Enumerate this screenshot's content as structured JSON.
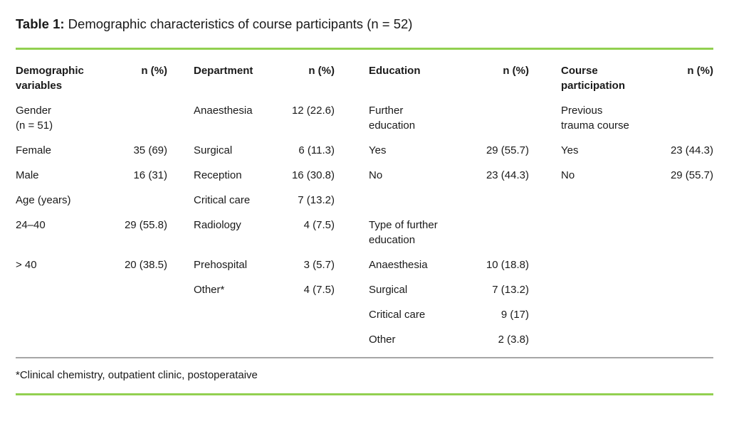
{
  "title": {
    "label": "Table 1:",
    "text": " Demographic characteristics of course participants (n = 52)"
  },
  "table": {
    "columns": [
      {
        "header": "Demographic\nvariables",
        "align": "left"
      },
      {
        "header": "n (%)",
        "align": "right"
      },
      {
        "header": "Department",
        "align": "left"
      },
      {
        "header": "n (%)",
        "align": "right"
      },
      {
        "header": "Education",
        "align": "left"
      },
      {
        "header": "n (%)",
        "align": "right"
      },
      {
        "header": "Course\nparticipation",
        "align": "left"
      },
      {
        "header": "n (%)",
        "align": "right"
      }
    ],
    "rows": [
      {
        "cells": [
          {
            "text": "Gender\n(n = 51)",
            "bold": true
          },
          {
            "text": ""
          },
          {
            "text": "Anaesthesia"
          },
          {
            "text": "12 (22.6)"
          },
          {
            "text": "Further\neducation",
            "bold": true
          },
          {
            "text": ""
          },
          {
            "text": "Previous\ntrauma course",
            "bold": true
          },
          {
            "text": ""
          }
        ]
      },
      {
        "cells": [
          {
            "text": "Female"
          },
          {
            "text": "35 (69)"
          },
          {
            "text": "Surgical"
          },
          {
            "text": "6 (11.3)"
          },
          {
            "text": "Yes"
          },
          {
            "text": "29 (55.7)"
          },
          {
            "text": "Yes"
          },
          {
            "text": "23 (44.3)"
          }
        ]
      },
      {
        "cells": [
          {
            "text": "Male"
          },
          {
            "text": "16 (31)"
          },
          {
            "text": "Reception"
          },
          {
            "text": "16 (30.8)"
          },
          {
            "text": "No"
          },
          {
            "text": "23 (44.3)"
          },
          {
            "text": "No"
          },
          {
            "text": "29 (55.7)"
          }
        ]
      },
      {
        "cells": [
          {
            "text": "Age (years)",
            "bold": true
          },
          {
            "text": ""
          },
          {
            "text": "Critical care"
          },
          {
            "text": "7 (13.2)"
          },
          {
            "text": ""
          },
          {
            "text": ""
          },
          {
            "text": ""
          },
          {
            "text": ""
          }
        ]
      },
      {
        "cells": [
          {
            "text": "24–40"
          },
          {
            "text": "29 (55.8)"
          },
          {
            "text": "Radiology"
          },
          {
            "text": "4 (7.5)"
          },
          {
            "text": "Type of further\neducation",
            "bold": true
          },
          {
            "text": ""
          },
          {
            "text": ""
          },
          {
            "text": ""
          }
        ]
      },
      {
        "cells": [
          {
            "text": "> 40"
          },
          {
            "text": "20 (38.5)"
          },
          {
            "text": "Prehospital"
          },
          {
            "text": "3 (5.7)"
          },
          {
            "text": "Anaesthesia"
          },
          {
            "text": "10 (18.8)"
          },
          {
            "text": ""
          },
          {
            "text": ""
          }
        ]
      },
      {
        "cells": [
          {
            "text": ""
          },
          {
            "text": ""
          },
          {
            "text": "Other*"
          },
          {
            "text": "4 (7.5)"
          },
          {
            "text": "Surgical"
          },
          {
            "text": "7 (13.2)"
          },
          {
            "text": ""
          },
          {
            "text": ""
          }
        ]
      },
      {
        "cells": [
          {
            "text": ""
          },
          {
            "text": ""
          },
          {
            "text": ""
          },
          {
            "text": ""
          },
          {
            "text": "Critical care"
          },
          {
            "text": "9 (17)"
          },
          {
            "text": ""
          },
          {
            "text": ""
          }
        ]
      },
      {
        "cells": [
          {
            "text": ""
          },
          {
            "text": ""
          },
          {
            "text": ""
          },
          {
            "text": ""
          },
          {
            "text": "Other"
          },
          {
            "text": "2 (3.8)"
          },
          {
            "text": ""
          },
          {
            "text": ""
          }
        ]
      }
    ]
  },
  "footnote": "*Clinical chemistry, outpatient clinic, postoperataive",
  "colors": {
    "rule_green": "#92d050",
    "rule_gray": "#a6a6a6",
    "text": "#1a1a1a"
  }
}
